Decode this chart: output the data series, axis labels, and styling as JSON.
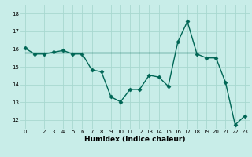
{
  "title": "",
  "xlabel": "Humidex (Indice chaleur)",
  "ylabel": "",
  "background_color": "#c8ede8",
  "grid_color": "#a8d8d0",
  "line_color": "#006655",
  "xlim": [
    -0.5,
    23.5
  ],
  "ylim": [
    11.5,
    18.5
  ],
  "xticks": [
    0,
    1,
    2,
    3,
    4,
    5,
    6,
    7,
    8,
    9,
    10,
    11,
    12,
    13,
    14,
    15,
    16,
    17,
    18,
    19,
    20,
    21,
    22,
    23
  ],
  "yticks": [
    12,
    13,
    14,
    15,
    16,
    17,
    18
  ],
  "series1_x": [
    0,
    1,
    2,
    3,
    4,
    5,
    6,
    7,
    8,
    9,
    10,
    11,
    12,
    13,
    14,
    15,
    16,
    17,
    18,
    19,
    20,
    21,
    22,
    23
  ],
  "series1_y": [
    16.05,
    15.72,
    15.72,
    15.82,
    15.92,
    15.72,
    15.72,
    14.82,
    14.72,
    13.3,
    13.02,
    13.72,
    13.72,
    14.52,
    14.42,
    13.9,
    16.4,
    17.55,
    15.72,
    15.5,
    15.5,
    14.1,
    11.72,
    12.22
  ],
  "series2_x": [
    0,
    10,
    18,
    20
  ],
  "series2_y": [
    15.78,
    15.78,
    15.78,
    15.78
  ],
  "marker": "D",
  "markersize": 2.5,
  "linewidth": 1.0
}
